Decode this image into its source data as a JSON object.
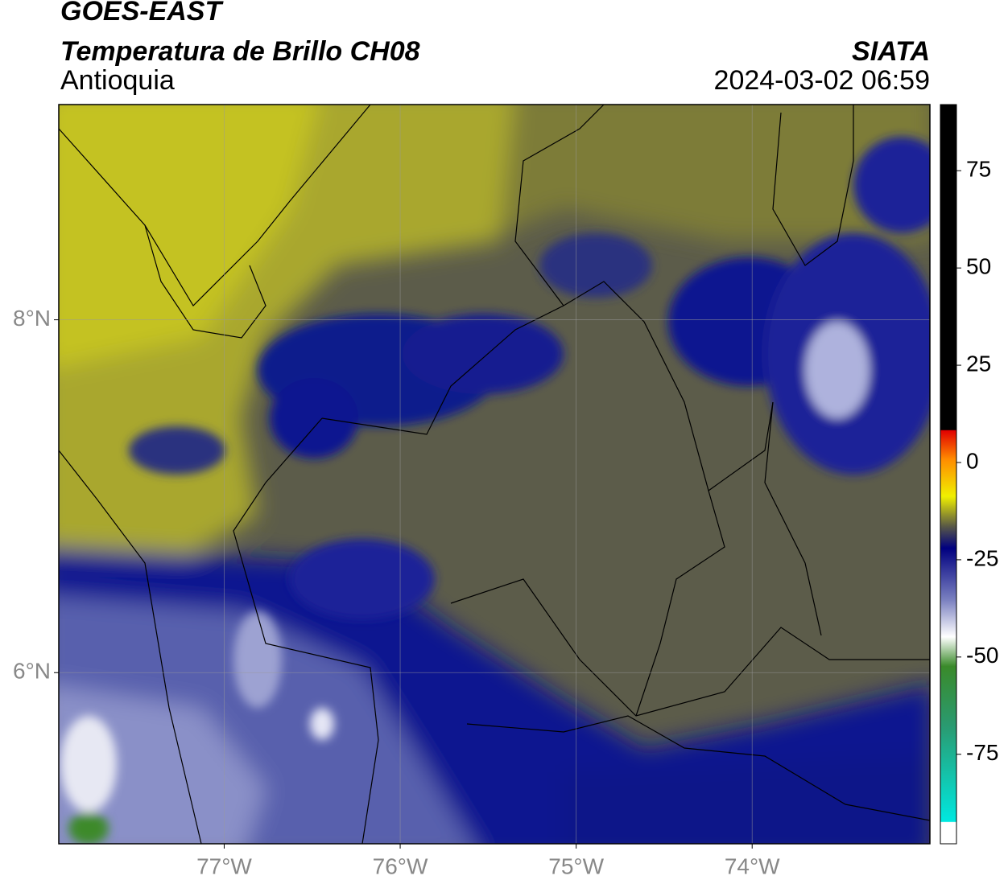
{
  "header": {
    "title": "GOES-EAST",
    "subtitle": "Temperatura de Brillo CH08",
    "region": "Antioquia",
    "source": "SIATA",
    "datetime": "2024-03-02 06:59"
  },
  "map": {
    "xlim": [
      -77.94,
      -72.99
    ],
    "ylim": [
      5.03,
      9.22
    ],
    "xticks": [
      {
        "value": -77,
        "label": "77°W"
      },
      {
        "value": -76,
        "label": "76°W"
      },
      {
        "value": -75,
        "label": "75°W"
      },
      {
        "value": -74,
        "label": "74°W"
      }
    ],
    "yticks": [
      {
        "value": 8,
        "label": "8°N"
      },
      {
        "value": 6,
        "label": "6°N"
      }
    ],
    "grid": true
  },
  "colorbar": {
    "lim": [
      -98,
      92
    ],
    "ticks": [
      75,
      50,
      25,
      0,
      -25,
      -50,
      -75
    ]
  }
}
